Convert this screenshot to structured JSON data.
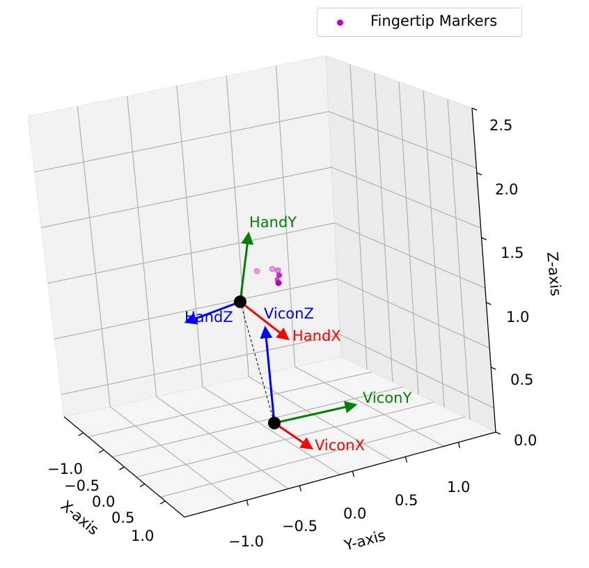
{
  "chart_data": {
    "type": "scatter3d",
    "axes": {
      "xlabel": "X-axis",
      "ylabel": "Y-axis",
      "zlabel": "Z-axis",
      "x_ticks": [
        "−1.0",
        "−0.5",
        "0.0",
        "0.5",
        "1.0"
      ],
      "y_ticks": [
        "−1.0",
        "−0.5",
        "0.0",
        "0.5",
        "1.0"
      ],
      "z_ticks": [
        "0.0",
        "0.5",
        "1.0",
        "1.5",
        "2.0",
        "2.5"
      ],
      "grid": true,
      "pane_colors": {
        "left": "#f2f2f2",
        "right": "#e8e8e8",
        "floor": "#f5f5f5"
      }
    },
    "legend": {
      "label": "Fingertip Markers",
      "color": "#bf00bf",
      "placement": "upper right"
    },
    "frames": [
      {
        "origin_name": "vicon-origin",
        "axes": [
          {
            "label": "ViconX",
            "color": "#ff0000"
          },
          {
            "label": "ViconY",
            "color": "#008000"
          },
          {
            "label": "ViconZ",
            "color": "#0000ff"
          }
        ]
      },
      {
        "origin_name": "hand-origin",
        "axes": [
          {
            "label": "HandX",
            "color": "#ff0000"
          },
          {
            "label": "HandY",
            "color": "#008000"
          },
          {
            "label": "HandZ",
            "color": "#0000ff"
          }
        ]
      }
    ],
    "connector": {
      "style": "dashed",
      "color": "#000000"
    },
    "fingertip_marker_count": 6
  }
}
